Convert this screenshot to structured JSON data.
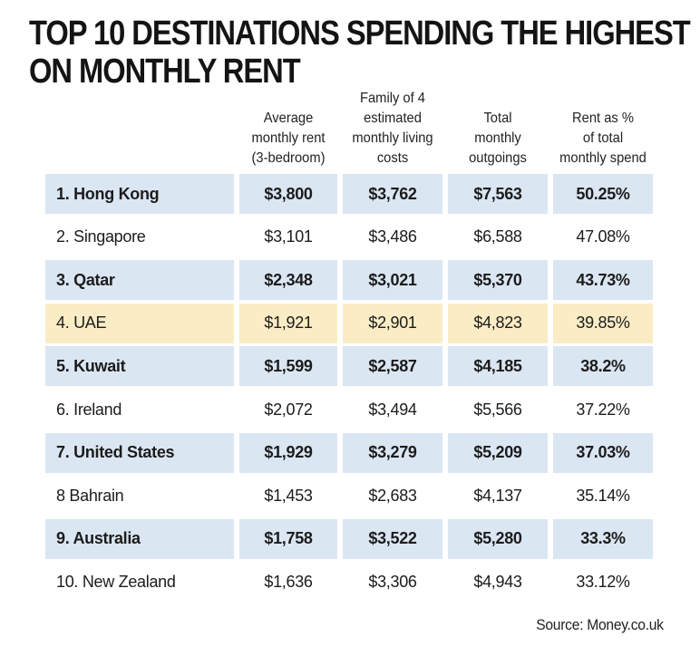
{
  "title_lines": [
    "TOP 10 DESTINATIONS SPENDING THE HIGHEST",
    "ON MONTHLY RENT"
  ],
  "source": "Source: Money.co.uk",
  "chart_data": {
    "type": "table",
    "title": "TOP 10 DESTINATIONS SPENDING THE HIGHEST ON MONTHLY RENT",
    "columns": [
      "",
      "Average\nmonthly rent\n(3-bedroom)",
      "Family of 4\nestimated\nmonthly living\ncosts",
      "Total\nmonthly\noutgoings",
      "Rent as %\nof total\nmonthly spend"
    ],
    "rows": [
      {
        "name": "1. Hong Kong",
        "rent": "$3,800",
        "living": "$3,762",
        "total": "$7,563",
        "pct": "50.25%",
        "style": "blue"
      },
      {
        "name": "2. Singapore",
        "rent": "$3,101",
        "living": "$3,486",
        "total": "$6,588",
        "pct": "47.08%",
        "style": "plain"
      },
      {
        "name": "3. Qatar",
        "rent": "$2,348",
        "living": "$3,021",
        "total": "$5,370",
        "pct": "43.73%",
        "style": "blue"
      },
      {
        "name": "4. UAE",
        "rent": "$1,921",
        "living": "$2,901",
        "total": "$4,823",
        "pct": "39.85%",
        "style": "yellow"
      },
      {
        "name": "5. Kuwait",
        "rent": "$1,599",
        "living": "$2,587",
        "total": "$4,185",
        "pct": "38.2%",
        "style": "blue"
      },
      {
        "name": "6. Ireland",
        "rent": "$2,072",
        "living": "$3,494",
        "total": "$5,566",
        "pct": "37.22%",
        "style": "plain"
      },
      {
        "name": "7. United States",
        "rent": "$1,929",
        "living": "$3,279",
        "total": "$5,209",
        "pct": "37.03%",
        "style": "blue"
      },
      {
        "name": "8 Bahrain",
        "rent": "$1,453",
        "living": "$2,683",
        "total": "$4,137",
        "pct": "35.14%",
        "style": "plain"
      },
      {
        "name": "9. Australia",
        "rent": "$1,758",
        "living": "$3,522",
        "total": "$5,280",
        "pct": "33.3%",
        "style": "blue"
      },
      {
        "name": "10. New Zealand",
        "rent": "$1,636",
        "living": "$3,306",
        "total": "$4,943",
        "pct": "33.12%",
        "style": "plain"
      }
    ]
  },
  "colors": {
    "blue_row": "#dbe6f3",
    "yellow_row": "#faecc4",
    "text": "#1a1a1a"
  }
}
